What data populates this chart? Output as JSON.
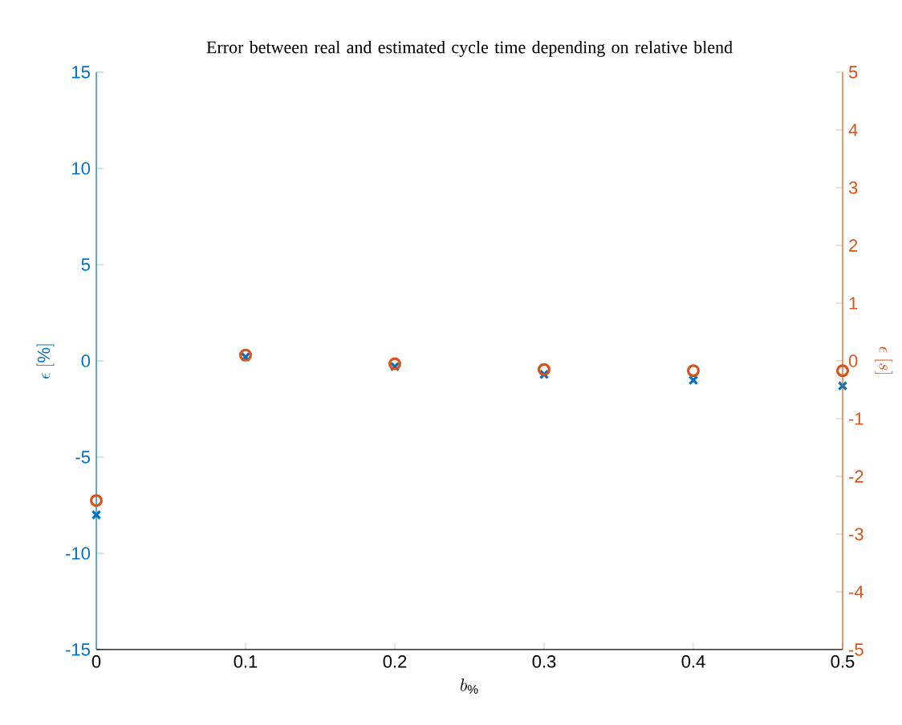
{
  "chart_data": {
    "type": "scatter",
    "title": "Error between real and estimated cycle time depending on relative blend",
    "xlabel": "b_{\\%}",
    "ylabel": "\\epsilon\\ [\\%]",
    "y2label": "\\epsilon\\ [s]",
    "x": [
      0,
      0.1,
      0.2,
      0.3,
      0.4,
      0.5
    ],
    "series": [
      {
        "color": "#0072bd",
        "marker": "cross",
        "values": [
          -8.0,
          0.2,
          -0.3,
          -0.7,
          -1.0,
          -1.3
        ]
      },
      {
        "color": "#d95319",
        "marker": "circle",
        "axis": "y2",
        "values": [
          -2.42,
          0.1,
          -0.05,
          -0.15,
          -0.17,
          -0.17
        ]
      }
    ],
    "xlim": [
      0,
      0.5
    ],
    "xticks": [
      0,
      0.1,
      0.2,
      0.3,
      0.4,
      0.5
    ],
    "ylim": [
      -15,
      15
    ],
    "yticks": [
      -15,
      -10,
      -5,
      0,
      5,
      10,
      15
    ],
    "y2lim": [
      -5,
      5
    ],
    "y2ticks": [
      -5,
      -4,
      -3,
      -2,
      -1,
      0,
      1,
      2,
      3,
      4,
      5
    ]
  }
}
